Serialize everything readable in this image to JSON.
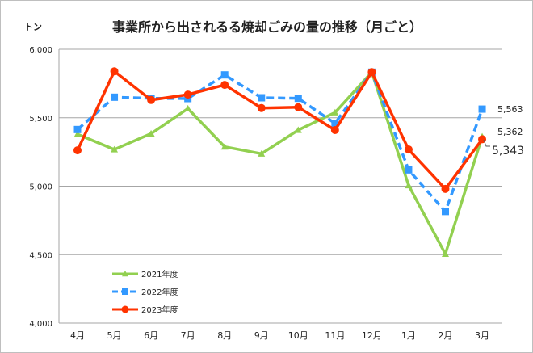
{
  "chart_data": {
    "type": "line",
    "title": "事業所から出されるる焼却ごみの量の推移（月ごと）",
    "ylabel": "トン",
    "xlabel": "",
    "ylim": [
      4000,
      6000
    ],
    "yticks": [
      4000,
      4500,
      5000,
      5500,
      6000
    ],
    "ytick_labels": [
      "4,000",
      "4,500",
      "5,000",
      "5,500",
      "6,000"
    ],
    "categories": [
      "4月",
      "5月",
      "6月",
      "7月",
      "8月",
      "9月",
      "10月",
      "11月",
      "12月",
      "1月",
      "2月",
      "3月"
    ],
    "grid": true,
    "legend": "bottom-left",
    "series": [
      {
        "name": "2021年度",
        "color": "#92d050",
        "marker": "triangle",
        "dash": false,
        "values": [
          5380,
          5268,
          5384,
          5567,
          5288,
          5237,
          5410,
          5538,
          5833,
          5006,
          4505,
          5362
        ]
      },
      {
        "name": "2022年度",
        "color": "#3399ff",
        "marker": "square",
        "dash": true,
        "values": [
          5414,
          5650,
          5642,
          5640,
          5813,
          5646,
          5642,
          5459,
          5833,
          5119,
          4815,
          5563
        ]
      },
      {
        "name": "2023年度",
        "color": "#ff3300",
        "marker": "circle",
        "dash": false,
        "values": [
          5262,
          5839,
          5630,
          5669,
          5740,
          5571,
          5577,
          5410,
          5833,
          5268,
          4980,
          5343
        ]
      }
    ],
    "data_labels": [
      "5,362",
      "5,563",
      "5,343"
    ]
  }
}
